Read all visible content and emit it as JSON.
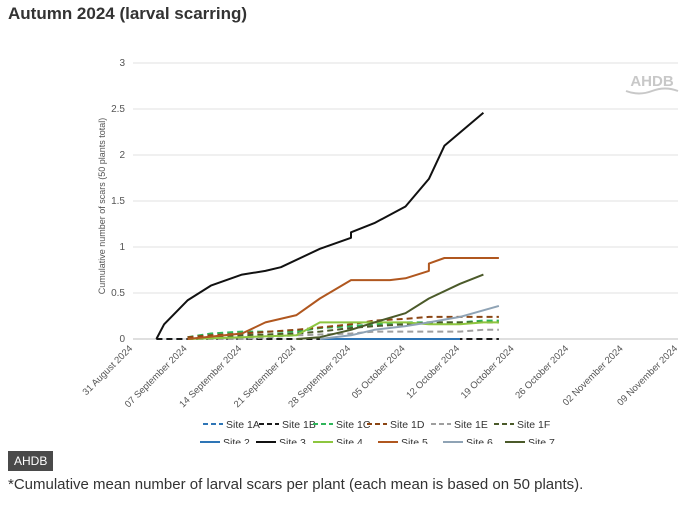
{
  "page": {
    "title": "Autumn 2024 (larval scarring)",
    "tag": "AHDB",
    "caption": "*Cumulative mean number of larval scars per plant (each mean is based on 50 plants)."
  },
  "chart_data": {
    "type": "line",
    "title": "",
    "ylabel": "Cumulative number of scars (50 plants total)",
    "xlabel": "",
    "watermark": "AHDB",
    "ylim": [
      0,
      3
    ],
    "yticks": [
      "0",
      "0.5",
      "1",
      "1.5",
      "2",
      "2.5",
      "3"
    ],
    "xlim": [
      "2024-08-31",
      "2024-11-09"
    ],
    "xticks": [
      "31 August 2024",
      "07 September 2024",
      "14 September 2024",
      "21 September 2024",
      "28 September 2024",
      "05 October 2024",
      "12 October 2024",
      "19 October 2024",
      "26 October 2024",
      "02 November 2024",
      "09 November 2024"
    ],
    "grid": "horizontal",
    "legend_position": "bottom",
    "series": [
      {
        "name": "Site 1A",
        "color": "#2e75b6",
        "dash": true,
        "x": [
          "2024-09-03",
          "2024-09-10",
          "2024-09-17",
          "2024-09-24",
          "2024-10-01",
          "2024-10-08",
          "2024-10-15"
        ],
        "y": [
          0,
          0,
          0,
          0,
          0,
          0,
          0
        ]
      },
      {
        "name": "Site 1B",
        "color": "#1a1a1a",
        "dash": true,
        "x": [
          "2024-09-03",
          "2024-09-10",
          "2024-09-17",
          "2024-09-24",
          "2024-10-01",
          "2024-10-08",
          "2024-10-15",
          "2024-10-17"
        ],
        "y": [
          0,
          0,
          0,
          0,
          0,
          0,
          0,
          0
        ]
      },
      {
        "name": "Site 1C",
        "color": "#2fb55a",
        "dash": true,
        "x": [
          "2024-09-07",
          "2024-09-10",
          "2024-09-14",
          "2024-09-21",
          "2024-09-24",
          "2024-09-28",
          "2024-10-01",
          "2024-10-05",
          "2024-10-08",
          "2024-10-12",
          "2024-10-15",
          "2024-10-17"
        ],
        "y": [
          0.02,
          0.06,
          0.08,
          0.08,
          0.12,
          0.14,
          0.16,
          0.18,
          0.18,
          0.18,
          0.2,
          0.2
        ]
      },
      {
        "name": "Site 1D",
        "color": "#8b4513",
        "dash": true,
        "x": [
          "2024-09-07",
          "2024-09-10",
          "2024-09-14",
          "2024-09-21",
          "2024-09-28",
          "2024-10-01",
          "2024-10-05",
          "2024-10-08",
          "2024-10-12",
          "2024-10-15",
          "2024-10-17"
        ],
        "y": [
          0.02,
          0.04,
          0.06,
          0.1,
          0.16,
          0.2,
          0.22,
          0.24,
          0.24,
          0.24,
          0.24
        ]
      },
      {
        "name": "Site 1E",
        "color": "#9e9e9e",
        "dash": true,
        "x": [
          "2024-09-07",
          "2024-09-14",
          "2024-09-21",
          "2024-09-28",
          "2024-10-01",
          "2024-10-05",
          "2024-10-08",
          "2024-10-12",
          "2024-10-15",
          "2024-10-17"
        ],
        "y": [
          0,
          0,
          0.04,
          0.06,
          0.08,
          0.08,
          0.08,
          0.08,
          0.1,
          0.1
        ]
      },
      {
        "name": "Site 1F",
        "color": "#4b5a2a",
        "dash": true,
        "x": [
          "2024-09-07",
          "2024-09-14",
          "2024-09-21",
          "2024-09-24",
          "2024-09-28",
          "2024-10-01",
          "2024-10-05",
          "2024-10-08",
          "2024-10-12",
          "2024-10-15",
          "2024-10-17"
        ],
        "y": [
          0,
          0.04,
          0.06,
          0.08,
          0.12,
          0.14,
          0.16,
          0.18,
          0.18,
          0.18,
          0.18
        ]
      },
      {
        "name": "Site 2",
        "color": "#2e75b6",
        "dash": false,
        "x": [
          "2024-09-24",
          "2024-10-01",
          "2024-10-08",
          "2024-10-12"
        ],
        "y": [
          0,
          0,
          0,
          0
        ]
      },
      {
        "name": "Site 3",
        "color": "#111111",
        "dash": false,
        "x": [
          "2024-09-03",
          "2024-09-04",
          "2024-09-07",
          "2024-09-10",
          "2024-09-14",
          "2024-09-17",
          "2024-09-19",
          "2024-09-24",
          "2024-09-28",
          "2024-09-28",
          "2024-10-01",
          "2024-10-05",
          "2024-10-08",
          "2024-10-10",
          "2024-10-15"
        ],
        "y": [
          0,
          0.16,
          0.42,
          0.58,
          0.7,
          0.74,
          0.78,
          0.98,
          1.1,
          1.16,
          1.26,
          1.44,
          1.74,
          2.1,
          2.46
        ]
      },
      {
        "name": "Site 4",
        "color": "#8dc63f",
        "dash": false,
        "x": [
          "2024-09-07",
          "2024-09-14",
          "2024-09-21",
          "2024-09-24",
          "2024-09-28",
          "2024-10-01",
          "2024-10-05",
          "2024-10-08",
          "2024-10-12",
          "2024-10-15",
          "2024-10-17"
        ],
        "y": [
          0,
          0.02,
          0.04,
          0.18,
          0.18,
          0.18,
          0.18,
          0.16,
          0.16,
          0.18,
          0.18
        ]
      },
      {
        "name": "Site 5",
        "color": "#b0571f",
        "dash": false,
        "x": [
          "2024-09-07",
          "2024-09-14",
          "2024-09-17",
          "2024-09-21",
          "2024-09-24",
          "2024-09-28",
          "2024-10-01",
          "2024-10-03",
          "2024-10-05",
          "2024-10-08",
          "2024-10-08",
          "2024-10-10",
          "2024-10-15",
          "2024-10-17"
        ],
        "y": [
          0,
          0.06,
          0.18,
          0.26,
          0.44,
          0.64,
          0.64,
          0.64,
          0.66,
          0.74,
          0.82,
          0.88,
          0.88,
          0.88
        ]
      },
      {
        "name": "Site 6",
        "color": "#8fa3b5",
        "dash": false,
        "x": [
          "2024-09-24",
          "2024-09-28",
          "2024-10-01",
          "2024-10-05",
          "2024-10-08",
          "2024-10-12",
          "2024-10-17"
        ],
        "y": [
          0,
          0.04,
          0.1,
          0.14,
          0.18,
          0.24,
          0.36
        ]
      },
      {
        "name": "Site 7",
        "color": "#4b5a2a",
        "dash": false,
        "x": [
          "2024-09-21",
          "2024-09-24",
          "2024-09-28",
          "2024-10-01",
          "2024-10-05",
          "2024-10-08",
          "2024-10-12",
          "2024-10-15"
        ],
        "y": [
          0,
          0.02,
          0.1,
          0.18,
          0.28,
          0.44,
          0.6,
          0.7
        ]
      }
    ]
  }
}
